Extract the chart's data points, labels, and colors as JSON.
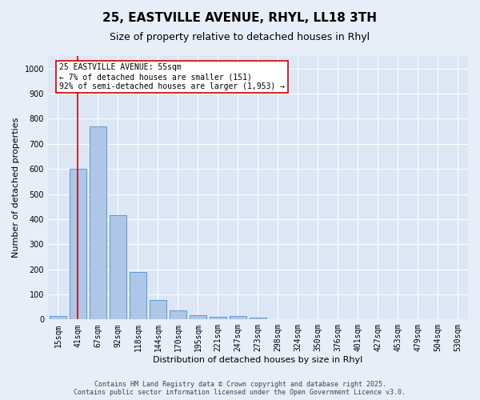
{
  "title": "25, EASTVILLE AVENUE, RHYL, LL18 3TH",
  "subtitle": "Size of property relative to detached houses in Rhyl",
  "xlabel": "Distribution of detached houses by size in Rhyl",
  "ylabel": "Number of detached properties",
  "categories": [
    "15sqm",
    "41sqm",
    "67sqm",
    "92sqm",
    "118sqm",
    "144sqm",
    "170sqm",
    "195sqm",
    "221sqm",
    "247sqm",
    "273sqm",
    "298sqm",
    "324sqm",
    "350sqm",
    "376sqm",
    "401sqm",
    "427sqm",
    "453sqm",
    "479sqm",
    "504sqm",
    "530sqm"
  ],
  "values": [
    15,
    600,
    770,
    415,
    190,
    77,
    35,
    18,
    10,
    14,
    8,
    0,
    0,
    0,
    0,
    0,
    0,
    0,
    0,
    0,
    0
  ],
  "bar_color": "#aec6e8",
  "bar_edge_color": "#5b9bd5",
  "vline_x": 1.0,
  "vline_color": "#cc0000",
  "annotation_text": "25 EASTVILLE AVENUE: 55sqm\n← 7% of detached houses are smaller (151)\n92% of semi-detached houses are larger (1,953) →",
  "annotation_box_color": "#ffffff",
  "annotation_box_edge": "#cc0000",
  "ylim": [
    0,
    1050
  ],
  "yticks": [
    0,
    100,
    200,
    300,
    400,
    500,
    600,
    700,
    800,
    900,
    1000
  ],
  "background_color": "#e8eef7",
  "plot_background": "#dce6f4",
  "grid_color": "#ffffff",
  "footer_line1": "Contains HM Land Registry data © Crown copyright and database right 2025.",
  "footer_line2": "Contains public sector information licensed under the Open Government Licence v3.0.",
  "title_fontsize": 11,
  "subtitle_fontsize": 9,
  "axis_label_fontsize": 8,
  "tick_fontsize": 7,
  "annotation_fontsize": 7,
  "footer_fontsize": 6
}
